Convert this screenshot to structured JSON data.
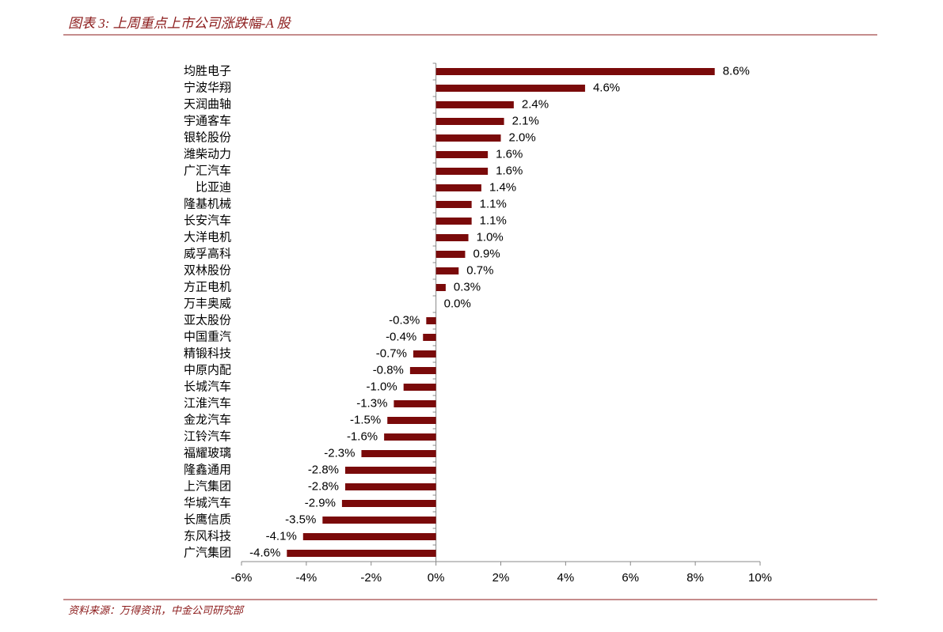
{
  "chart_data": {
    "type": "barh",
    "title": "图表 3: 上周重点上市公司涨跌幅-A 股",
    "source": "资料来源：万得资讯，中金公司研究部",
    "categories": [
      "均胜电子",
      "宁波华翔",
      "天润曲轴",
      "宇通客车",
      "银轮股份",
      "潍柴动力",
      "广汇汽车",
      "比亚迪",
      "隆基机械",
      "长安汽车",
      "大洋电机",
      "威孚高科",
      "双林股份",
      "方正电机",
      "万丰奥威",
      "亚太股份",
      "中国重汽",
      "精锻科技",
      "中原内配",
      "长城汽车",
      "江淮汽车",
      "金龙汽车",
      "江铃汽车",
      "福耀玻璃",
      "隆鑫通用",
      "上汽集团",
      "华城汽车",
      "长鹰信质",
      "东风科技",
      "广汽集团"
    ],
    "values": [
      8.6,
      4.6,
      2.4,
      2.1,
      2.0,
      1.6,
      1.6,
      1.4,
      1.1,
      1.1,
      1.0,
      0.9,
      0.7,
      0.3,
      0.0,
      -0.3,
      -0.4,
      -0.7,
      -0.8,
      -1.0,
      -1.3,
      -1.5,
      -1.6,
      -2.3,
      -2.8,
      -2.8,
      -2.9,
      -3.5,
      -4.1,
      -4.6
    ],
    "value_labels": [
      "8.6%",
      "4.6%",
      "2.4%",
      "2.1%",
      "2.0%",
      "1.6%",
      "1.6%",
      "1.4%",
      "1.1%",
      "1.1%",
      "1.0%",
      "0.9%",
      "0.7%",
      "0.3%",
      "0.0%",
      "-0.3%",
      "-0.4%",
      "-0.7%",
      "-0.8%",
      "-1.0%",
      "-1.3%",
      "-1.5%",
      "-1.6%",
      "-2.3%",
      "-2.8%",
      "-2.8%",
      "-2.9%",
      "-3.5%",
      "-4.1%",
      "-4.6%"
    ],
    "color": "#7a0a0a",
    "xlim": [
      -6,
      10
    ],
    "xticks": [
      {
        "value": -6,
        "label": "-6%"
      },
      {
        "value": -4,
        "label": "-4%"
      },
      {
        "value": -2,
        "label": "-2%"
      },
      {
        "value": 0,
        "label": "0%"
      },
      {
        "value": 2,
        "label": "2%"
      },
      {
        "value": 4,
        "label": "4%"
      },
      {
        "value": 6,
        "label": "6%"
      },
      {
        "value": 8,
        "label": "8%"
      },
      {
        "value": 10,
        "label": "10%"
      }
    ]
  }
}
